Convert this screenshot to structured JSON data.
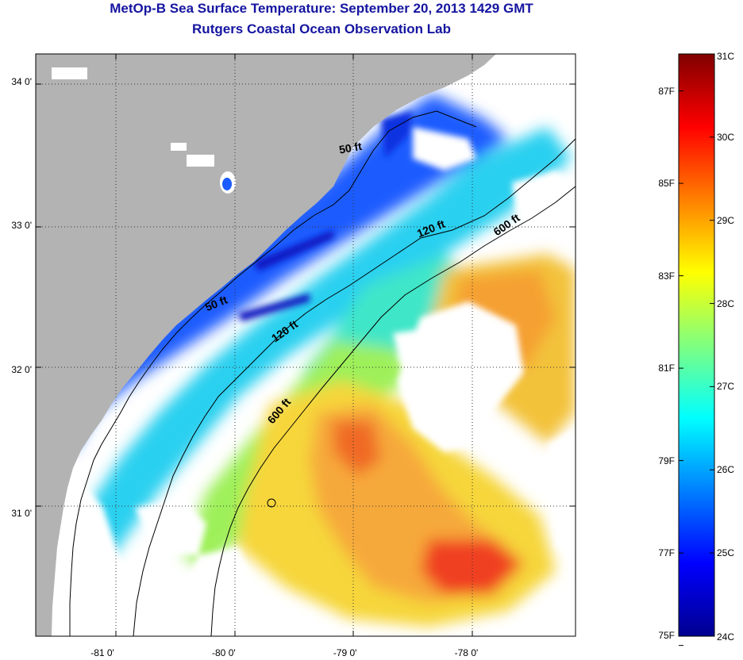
{
  "title": {
    "line1": "MetOp-B Sea Surface Temperature:  September 20, 2013 1429 GMT",
    "line2": "Rutgers Coastal Ocean Observation Lab"
  },
  "map": {
    "lon_range": [
      -81.55,
      -77.1
    ],
    "lat_range": [
      30.15,
      34.2
    ],
    "lat_ticks": [
      {
        "value": 34.0,
        "label": "34 0'"
      },
      {
        "value": 33.0,
        "label": "33 0'"
      },
      {
        "value": 32.0,
        "label": "32 0'"
      },
      {
        "value": 31.0,
        "label": "31 0'"
      }
    ],
    "lon_ticks": [
      {
        "value": -81.0,
        "label": "-81 0'"
      },
      {
        "value": -80.0,
        "label": "-80 0'"
      },
      {
        "value": -79.0,
        "label": "-79 0'"
      },
      {
        "value": -78.0,
        "label": "-78 0'"
      }
    ],
    "isobath_labels": [
      {
        "text": "50 ft",
        "lon": -78.95,
        "lat": 33.52,
        "angle": -10
      },
      {
        "text": "120 ft",
        "lon": -78.28,
        "lat": 32.96,
        "angle": -22
      },
      {
        "text": "600 ft",
        "lon": -77.65,
        "lat": 32.99,
        "angle": -35
      },
      {
        "text": "50 ft",
        "lon": -80.05,
        "lat": 32.44,
        "angle": -22
      },
      {
        "text": "120 ft",
        "lon": -79.48,
        "lat": 32.25,
        "angle": -35
      },
      {
        "text": "600 ft",
        "lon": -79.52,
        "lat": 31.7,
        "angle": -50
      }
    ],
    "colors": {
      "land": "#b3b3b3",
      "cloud": "#ffffff",
      "isobath": "#000000"
    }
  },
  "colorbar": {
    "range_c": [
      24,
      31
    ],
    "celsius_labels": [
      "31C",
      "30C",
      "29C",
      "28C",
      "27C",
      "26C",
      "25C",
      "24C"
    ],
    "fahrenheit_labels": [
      "87F",
      "85F",
      "83F",
      "81F",
      "79F",
      "77F",
      "75F"
    ]
  }
}
